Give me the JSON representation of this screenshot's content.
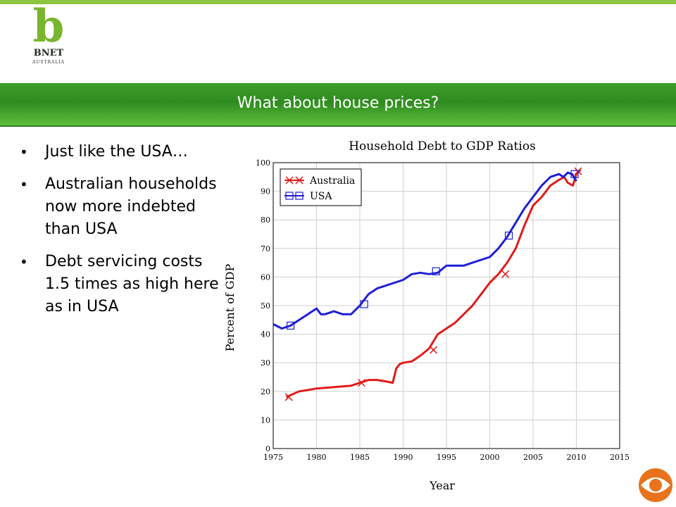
{
  "logo": {
    "letter": "b",
    "name": "BNET",
    "sub": "AUSTRALIA"
  },
  "banner": {
    "title": "What about house prices?"
  },
  "bullets": [
    "Just like the USA…",
    "Australian households now more indebted than USA",
    "Debt servicing costs 1.5 times as high here as in USA"
  ],
  "colors": {
    "accent_green": "#3f9e2a",
    "australia": "#e11b1b",
    "usa": "#1f1fd6"
  },
  "chart_data": {
    "type": "line",
    "title": "Household Debt to GDP Ratios",
    "xlabel": "Year",
    "ylabel": "Percent of GDP",
    "xlim": [
      1975,
      2015
    ],
    "ylim": [
      0,
      100
    ],
    "xticks": [
      1975,
      1980,
      1985,
      1990,
      1995,
      2000,
      2005,
      2010,
      2015
    ],
    "yticks": [
      0,
      10,
      20,
      30,
      40,
      50,
      60,
      70,
      80,
      90,
      100
    ],
    "grid": true,
    "legend": "top-left",
    "series": [
      {
        "name": "Australia",
        "color": "#e11b1b",
        "marker": "x",
        "x": [
          1976.5,
          1978,
          1979,
          1980,
          1982,
          1984,
          1985,
          1986,
          1987,
          1988,
          1988.8,
          1989.2,
          1989.6,
          1990,
          1991,
          1992,
          1993,
          1994,
          1995,
          1996,
          1997,
          1998,
          1999,
          2000,
          2001,
          2002,
          2003,
          2004,
          2005,
          2006,
          2007,
          2008,
          2008.6,
          2009,
          2009.6,
          2010,
          2010.5
        ],
        "y": [
          18,
          20,
          20.5,
          21,
          21.5,
          22,
          23,
          24,
          24,
          23.5,
          23,
          28,
          29.5,
          30,
          30.5,
          32.5,
          35,
          40,
          42,
          44,
          47,
          50,
          54,
          58,
          61,
          65,
          70,
          78,
          85,
          88,
          92,
          94,
          95,
          93,
          92,
          96,
          97.5
        ],
        "markers_x": [
          1976.8,
          1985.2,
          1993.5,
          2001.8,
          2010.2
        ],
        "markers_y": [
          18,
          23,
          34.5,
          61,
          97
        ]
      },
      {
        "name": "USA",
        "color": "#1f1fd6",
        "marker": "square",
        "x": [
          1975,
          1976,
          1977,
          1978,
          1979,
          1980,
          1980.5,
          1981,
          1982,
          1983,
          1984,
          1985,
          1986,
          1987,
          1988,
          1989,
          1990,
          1991,
          1992,
          1993,
          1994,
          1995,
          1996,
          1997,
          1998,
          1999,
          2000,
          2001,
          2002,
          2003,
          2004,
          2005,
          2006,
          2007,
          2008,
          2008.5,
          2009,
          2009.5,
          2010
        ],
        "y": [
          43.5,
          42,
          43,
          45,
          47,
          49,
          47,
          47,
          48,
          47,
          47,
          50,
          54,
          56,
          57,
          58,
          59,
          61,
          61.5,
          61,
          61.5,
          64,
          64,
          64,
          65,
          66,
          67,
          70,
          74,
          79,
          84,
          88,
          92,
          95,
          96,
          95,
          96.5,
          96,
          93.5
        ],
        "markers_x": [
          1977,
          1985.5,
          1993.8,
          2002.2,
          2009.8
        ],
        "markers_y": [
          43,
          50.5,
          62,
          74.5,
          96
        ]
      }
    ]
  }
}
